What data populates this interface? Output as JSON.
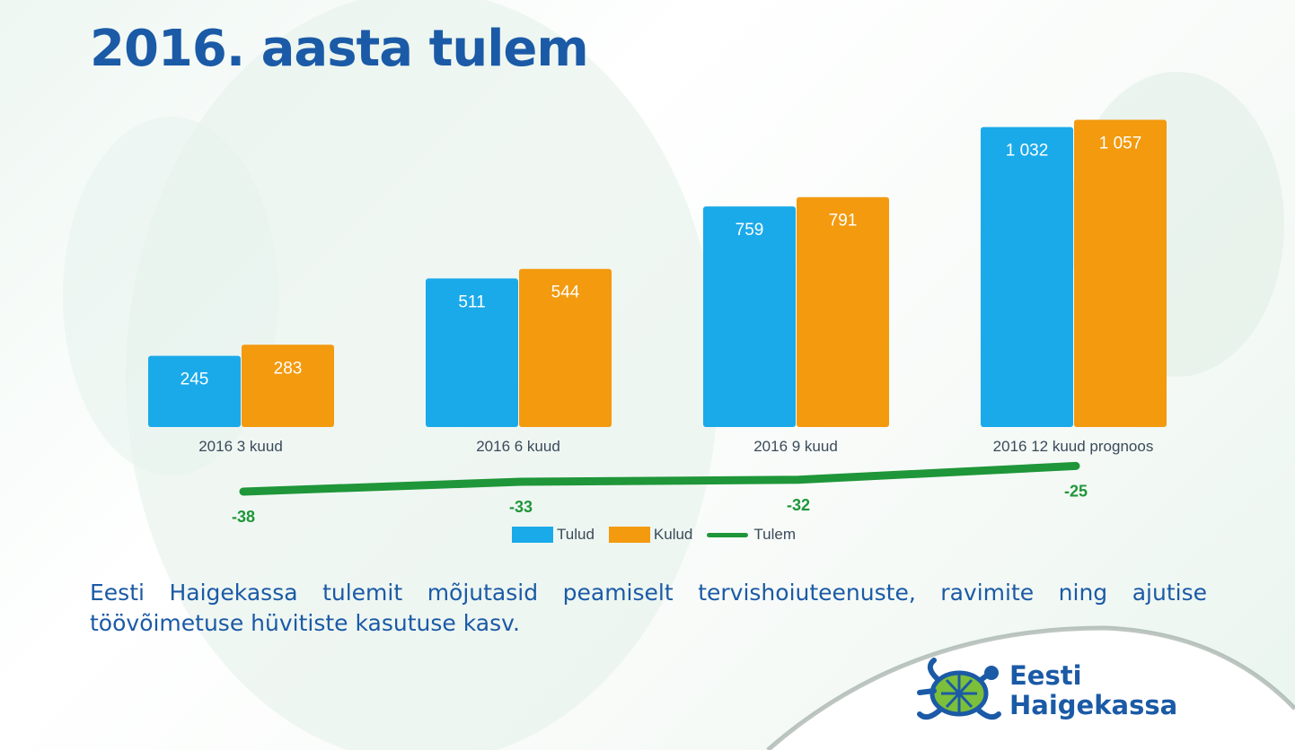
{
  "title": "2016. aasta tulem",
  "chart_data": {
    "type": "bar",
    "categories": [
      "2016 3 kuud",
      "2016 6 kuud",
      "2016 9 kuud",
      "2016 12 kuud prognoos"
    ],
    "series": [
      {
        "name": "Tulud",
        "type": "bar",
        "color": "#1aaaea",
        "values": [
          245,
          511,
          759,
          1032
        ],
        "labels": [
          "245",
          "511",
          "759",
          "1 032"
        ]
      },
      {
        "name": "Kulud",
        "type": "bar",
        "color": "#f39a0e",
        "values": [
          283,
          544,
          791,
          1057
        ],
        "labels": [
          "283",
          "544",
          "791",
          "1 057"
        ]
      },
      {
        "name": "Tulem",
        "type": "line",
        "color": "#1f9639",
        "values": [
          -38,
          -33,
          -32,
          -25
        ],
        "labels": [
          "-38",
          "-33",
          "-32",
          "-25"
        ]
      }
    ],
    "ylim": [
      0,
      1100
    ],
    "grid": false,
    "legend": "bottom-center"
  },
  "legend": {
    "tulud": "Tulud",
    "kulud": "Kulud",
    "tulem": "Tulem"
  },
  "description": "Eesti Haigekassa tulemit mõjutasid peamiselt tervishoiuteenuste, ravimite ning ajutise töövõimetuse hüvitiste kasutuse kasv.",
  "logo": {
    "line1": "Eesti",
    "line2": "Haigekassa"
  }
}
